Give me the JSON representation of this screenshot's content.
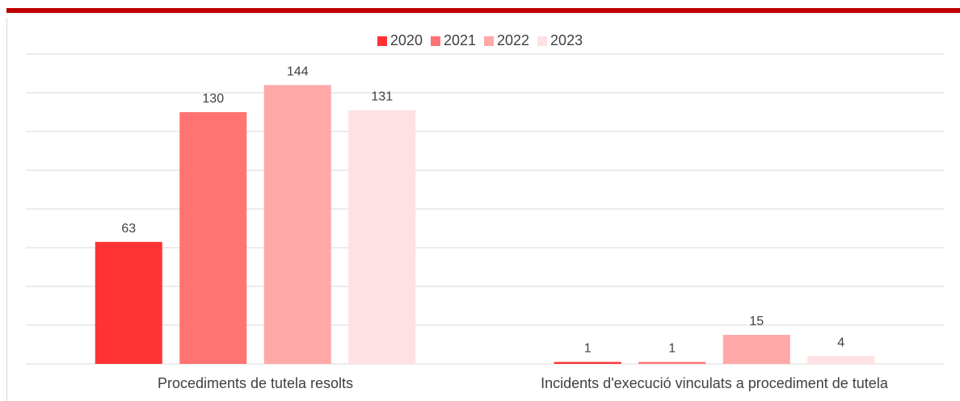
{
  "chart_data": {
    "type": "bar",
    "categories": [
      "Procediments de tutela resolts",
      "Incidents d'execució vinculats a procediment de tutela"
    ],
    "series": [
      {
        "name": "2020",
        "color": "#ff3333",
        "values": [
          63,
          1
        ]
      },
      {
        "name": "2021",
        "color": "#ff7373",
        "values": [
          130,
          1
        ]
      },
      {
        "name": "2022",
        "color": "#ffa8a8",
        "values": [
          144,
          15
        ]
      },
      {
        "name": "2023",
        "color": "#ffe1e3",
        "values": [
          131,
          4
        ]
      }
    ],
    "ylim": [
      0,
      160
    ],
    "grid": true,
    "legend_position": "top-center",
    "data_labels": true
  },
  "colors": {
    "accent_rule": "#c00000",
    "gridline": "#d9d9d9",
    "text": "#404040"
  }
}
